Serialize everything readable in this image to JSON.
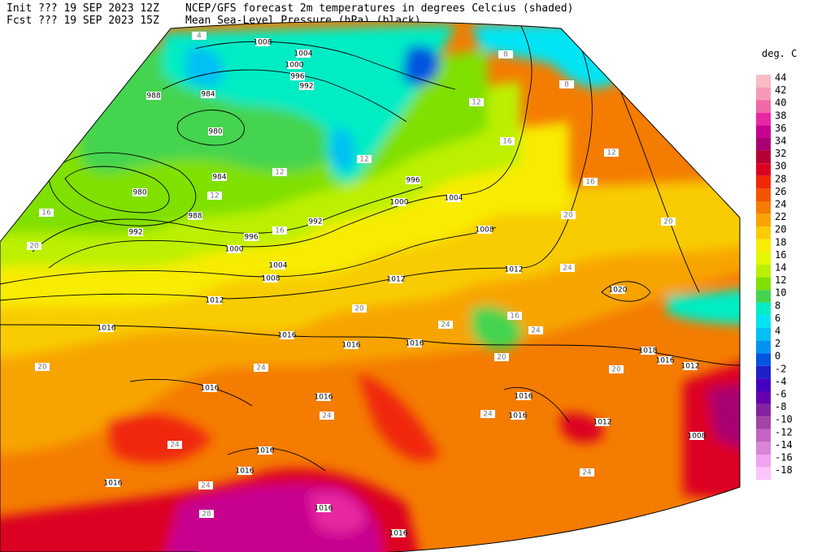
{
  "header": {
    "init": "Init  ??? 19 SEP 2023 12Z",
    "fcst": "Fcst ??? 19 SEP 2023 15Z",
    "title1": "NCEP/GFS forecast 2m temperatures in degrees Celcius (shaded)",
    "title2": "Mean Sea-Level Pressure (hPa) (black)."
  },
  "legend": {
    "title": "deg. C",
    "levels": [
      {
        "value": 44,
        "color": "#f8bcc4"
      },
      {
        "value": 42,
        "color": "#f898b8"
      },
      {
        "value": 40,
        "color": "#f068a8"
      },
      {
        "value": 38,
        "color": "#e828a0"
      },
      {
        "value": 36,
        "color": "#c80090"
      },
      {
        "value": 34,
        "color": "#a80070"
      },
      {
        "value": 32,
        "color": "#b40034"
      },
      {
        "value": 30,
        "color": "#dc0020"
      },
      {
        "value": 28,
        "color": "#f02808"
      },
      {
        "value": 26,
        "color": "#f45400"
      },
      {
        "value": 24,
        "color": "#f47c00"
      },
      {
        "value": 22,
        "color": "#f8a400"
      },
      {
        "value": 20,
        "color": "#f8cc00"
      },
      {
        "value": 18,
        "color": "#f8ec00"
      },
      {
        "value": 16,
        "color": "#e4f800"
      },
      {
        "value": 14,
        "color": "#bcf000"
      },
      {
        "value": 12,
        "color": "#80e000"
      },
      {
        "value": 10,
        "color": "#44d450"
      },
      {
        "value": 8,
        "color": "#00ecc4"
      },
      {
        "value": 6,
        "color": "#00e4f4"
      },
      {
        "value": 4,
        "color": "#00c0f4"
      },
      {
        "value": 2,
        "color": "#0094f0"
      },
      {
        "value": 0,
        "color": "#0054e0"
      },
      {
        "value": -2,
        "color": "#2020c8"
      },
      {
        "value": -4,
        "color": "#4400c0"
      },
      {
        "value": -6,
        "color": "#6400b0"
      },
      {
        "value": -8,
        "color": "#8424a0"
      },
      {
        "value": -10,
        "color": "#a444a4"
      },
      {
        "value": -12,
        "color": "#c464c4"
      },
      {
        "value": -14,
        "color": "#d884d8"
      },
      {
        "value": -16,
        "color": "#f0a4f0"
      },
      {
        "value": -18,
        "color": "#fcc4fc"
      }
    ]
  },
  "map": {
    "isobar_labels": [
      1008,
      1004,
      1000,
      996,
      992,
      988,
      984,
      980,
      984,
      980,
      988,
      992,
      996,
      1000,
      1004,
      1008,
      1012,
      1016,
      1016,
      1016,
      1016,
      1012,
      1008,
      1004,
      1000,
      996,
      992,
      1012,
      1020,
      1018,
      1016,
      1012,
      1016,
      1016,
      1016,
      1016,
      1012,
      1008,
      1016,
      1016,
      1016,
      1016,
      1016
    ],
    "temperature_labels": [
      4,
      8,
      8,
      12,
      16,
      20,
      20,
      24,
      20,
      16,
      12,
      12,
      16,
      20,
      24,
      24,
      20,
      20,
      24,
      24,
      24,
      28,
      24,
      20,
      24,
      24,
      16,
      12,
      16,
      12
    ]
  }
}
